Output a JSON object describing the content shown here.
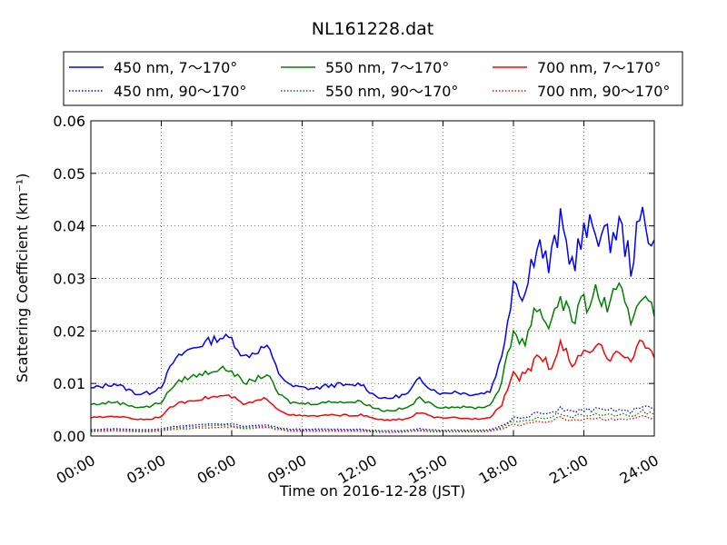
{
  "chart_data": {
    "type": "line",
    "title": "NL161228.dat",
    "xlabel": "Time on 2016-12-28 (JST)",
    "ylabel": "Scattering Coefficient (km⁻¹)",
    "xlim": [
      0,
      24
    ],
    "ylim": [
      0,
      0.06
    ],
    "x_tick_values": [
      0,
      3,
      6,
      9,
      12,
      15,
      18,
      21,
      24
    ],
    "x_tick_labels": [
      "00:00",
      "03:00",
      "06:00",
      "09:00",
      "12:00",
      "15:00",
      "18:00",
      "21:00",
      "24:00"
    ],
    "y_tick_values": [
      0,
      0.01,
      0.02,
      0.03,
      0.04,
      0.05,
      0.06
    ],
    "y_tick_labels": [
      "0.00",
      "0.01",
      "0.02",
      "0.03",
      "0.04",
      "0.05",
      "0.06"
    ],
    "grid": true,
    "legend_position": "top",
    "x": [
      0,
      0.5,
      1,
      1.5,
      2,
      2.5,
      3,
      3.5,
      4,
      4.5,
      5,
      5.5,
      6,
      6.5,
      7,
      7.5,
      8,
      8.5,
      9,
      9.5,
      10,
      10.5,
      11,
      11.5,
      12,
      12.5,
      13,
      13.5,
      14,
      14.5,
      15,
      15.5,
      16,
      16.5,
      17,
      17.5,
      18,
      18.5,
      19,
      19.5,
      20,
      20.5,
      21,
      21.5,
      22,
      22.5,
      23,
      23.5,
      24
    ],
    "series": [
      {
        "name": "450 nm, 7～170°",
        "color": "#0000ff",
        "style": "solid",
        "values": [
          0.009,
          0.0095,
          0.01,
          0.009,
          0.008,
          0.0082,
          0.0095,
          0.014,
          0.016,
          0.017,
          0.018,
          0.0188,
          0.0185,
          0.015,
          0.016,
          0.0172,
          0.012,
          0.0095,
          0.0092,
          0.009,
          0.0095,
          0.0098,
          0.0095,
          0.01,
          0.008,
          0.007,
          0.0075,
          0.008,
          0.011,
          0.009,
          0.008,
          0.0085,
          0.008,
          0.008,
          0.0085,
          0.015,
          0.03,
          0.027,
          0.038,
          0.032,
          0.04,
          0.033,
          0.038,
          0.04,
          0.037,
          0.04,
          0.033,
          0.042,
          0.037
        ]
      },
      {
        "name": "450 nm, 90～170°",
        "color": "#0000ff",
        "style": "dotted",
        "values": [
          0.0012,
          0.0013,
          0.0014,
          0.0013,
          0.0012,
          0.0012,
          0.0014,
          0.0018,
          0.002,
          0.0021,
          0.0022,
          0.0023,
          0.0023,
          0.0019,
          0.002,
          0.0021,
          0.0016,
          0.0013,
          0.0013,
          0.0013,
          0.0013,
          0.0013,
          0.0013,
          0.0013,
          0.0011,
          0.001,
          0.001,
          0.0011,
          0.0014,
          0.0012,
          0.0011,
          0.0011,
          0.0011,
          0.0011,
          0.0012,
          0.002,
          0.0035,
          0.0033,
          0.0045,
          0.004,
          0.0055,
          0.0045,
          0.005,
          0.005,
          0.0048,
          0.005,
          0.0045,
          0.006,
          0.005
        ]
      },
      {
        "name": "550 nm, 7～170°",
        "color": "#008000",
        "style": "solid",
        "values": [
          0.006,
          0.0062,
          0.0065,
          0.006,
          0.0055,
          0.0056,
          0.0065,
          0.0095,
          0.011,
          0.0115,
          0.0122,
          0.0128,
          0.0125,
          0.01,
          0.0108,
          0.0118,
          0.008,
          0.0064,
          0.0062,
          0.0062,
          0.0064,
          0.0066,
          0.0064,
          0.0066,
          0.0055,
          0.0048,
          0.005,
          0.0054,
          0.0072,
          0.006,
          0.0054,
          0.0056,
          0.0054,
          0.0054,
          0.0058,
          0.01,
          0.02,
          0.018,
          0.025,
          0.021,
          0.027,
          0.022,
          0.025,
          0.027,
          0.025,
          0.027,
          0.022,
          0.028,
          0.025
        ]
      },
      {
        "name": "550 nm, 90～170°",
        "color": "#008000",
        "style": "dotted",
        "values": [
          0.001,
          0.0011,
          0.0012,
          0.0011,
          0.001,
          0.001,
          0.0012,
          0.0015,
          0.0017,
          0.0018,
          0.0019,
          0.002,
          0.002,
          0.0016,
          0.0017,
          0.0018,
          0.0014,
          0.0011,
          0.0011,
          0.0011,
          0.0011,
          0.0011,
          0.0011,
          0.0011,
          0.0009,
          0.0008,
          0.0008,
          0.0009,
          0.0012,
          0.001,
          0.0009,
          0.0009,
          0.0009,
          0.0009,
          0.001,
          0.0016,
          0.0028,
          0.0027,
          0.0036,
          0.0033,
          0.0044,
          0.0036,
          0.004,
          0.0042,
          0.0039,
          0.0041,
          0.0037,
          0.0047,
          0.004
        ]
      },
      {
        "name": "700 nm, 7～170°",
        "color": "#ff0000",
        "style": "solid",
        "values": [
          0.0035,
          0.0036,
          0.0038,
          0.0035,
          0.0032,
          0.0032,
          0.0038,
          0.0058,
          0.0065,
          0.007,
          0.0073,
          0.0076,
          0.0075,
          0.006,
          0.0065,
          0.0072,
          0.005,
          0.004,
          0.0038,
          0.0038,
          0.0039,
          0.004,
          0.0039,
          0.004,
          0.0034,
          0.003,
          0.0031,
          0.0033,
          0.0045,
          0.0037,
          0.0033,
          0.0035,
          0.0033,
          0.0033,
          0.0036,
          0.006,
          0.012,
          0.011,
          0.016,
          0.013,
          0.017,
          0.014,
          0.015,
          0.017,
          0.015,
          0.017,
          0.014,
          0.018,
          0.015
        ]
      },
      {
        "name": "700 nm, 90～170°",
        "color": "#ff0000",
        "style": "dotted",
        "values": [
          0.0008,
          0.0009,
          0.001,
          0.0009,
          0.0008,
          0.0008,
          0.001,
          0.0012,
          0.0014,
          0.0015,
          0.0016,
          0.0017,
          0.0017,
          0.0014,
          0.0015,
          0.0016,
          0.0012,
          0.0009,
          0.0009,
          0.0009,
          0.0009,
          0.0009,
          0.0009,
          0.0009,
          0.0008,
          0.0007,
          0.0007,
          0.0008,
          0.001,
          0.0008,
          0.0008,
          0.0008,
          0.0008,
          0.0008,
          0.0009,
          0.0013,
          0.0022,
          0.0022,
          0.0029,
          0.0027,
          0.0035,
          0.003,
          0.0033,
          0.0034,
          0.0032,
          0.0034,
          0.0031,
          0.0038,
          0.0033
        ]
      }
    ]
  }
}
